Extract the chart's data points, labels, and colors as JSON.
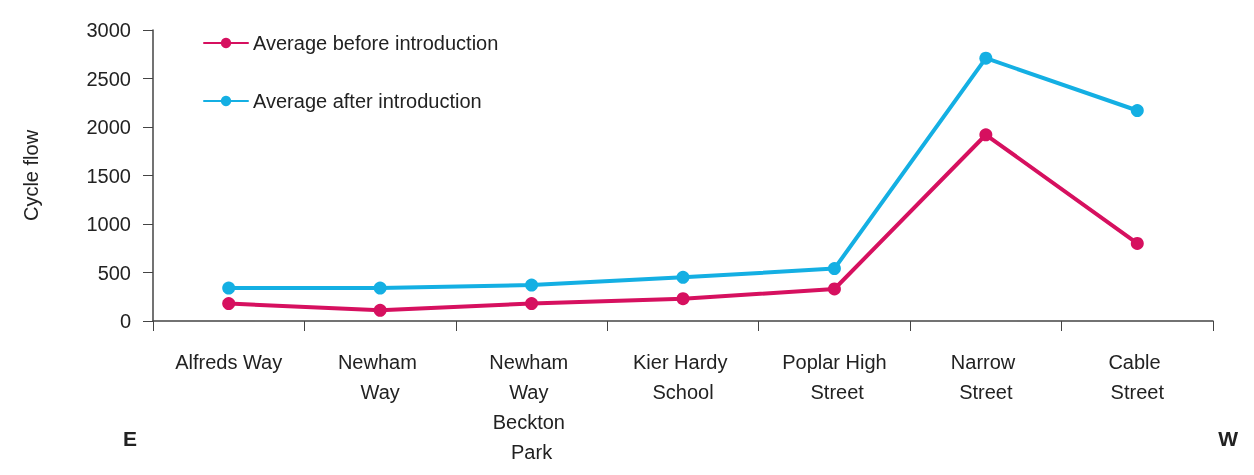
{
  "chart_data": {
    "type": "line",
    "ylabel": "Cycle flow",
    "categories": [
      "Alfreds Way",
      "Newham Way",
      "Newham Way Beckton Park",
      "Kier Hardy School",
      "Poplar High Street",
      "Narrow Street",
      "Cable Street"
    ],
    "series": [
      {
        "name": "Average before introduction",
        "color": "#d6105f",
        "values": [
          180,
          110,
          180,
          230,
          330,
          1920,
          800
        ]
      },
      {
        "name": "Average after introduction",
        "color": "#14afe3",
        "values": [
          340,
          340,
          370,
          450,
          540,
          2710,
          2170
        ]
      }
    ],
    "ylim": [
      0,
      3000
    ],
    "yticks": [
      0,
      500,
      1000,
      1500,
      2000,
      2500,
      3000
    ],
    "grid": false,
    "legend": "top left",
    "marker": "circle",
    "line_style": "solid",
    "annotations": [
      "E",
      "W"
    ]
  }
}
